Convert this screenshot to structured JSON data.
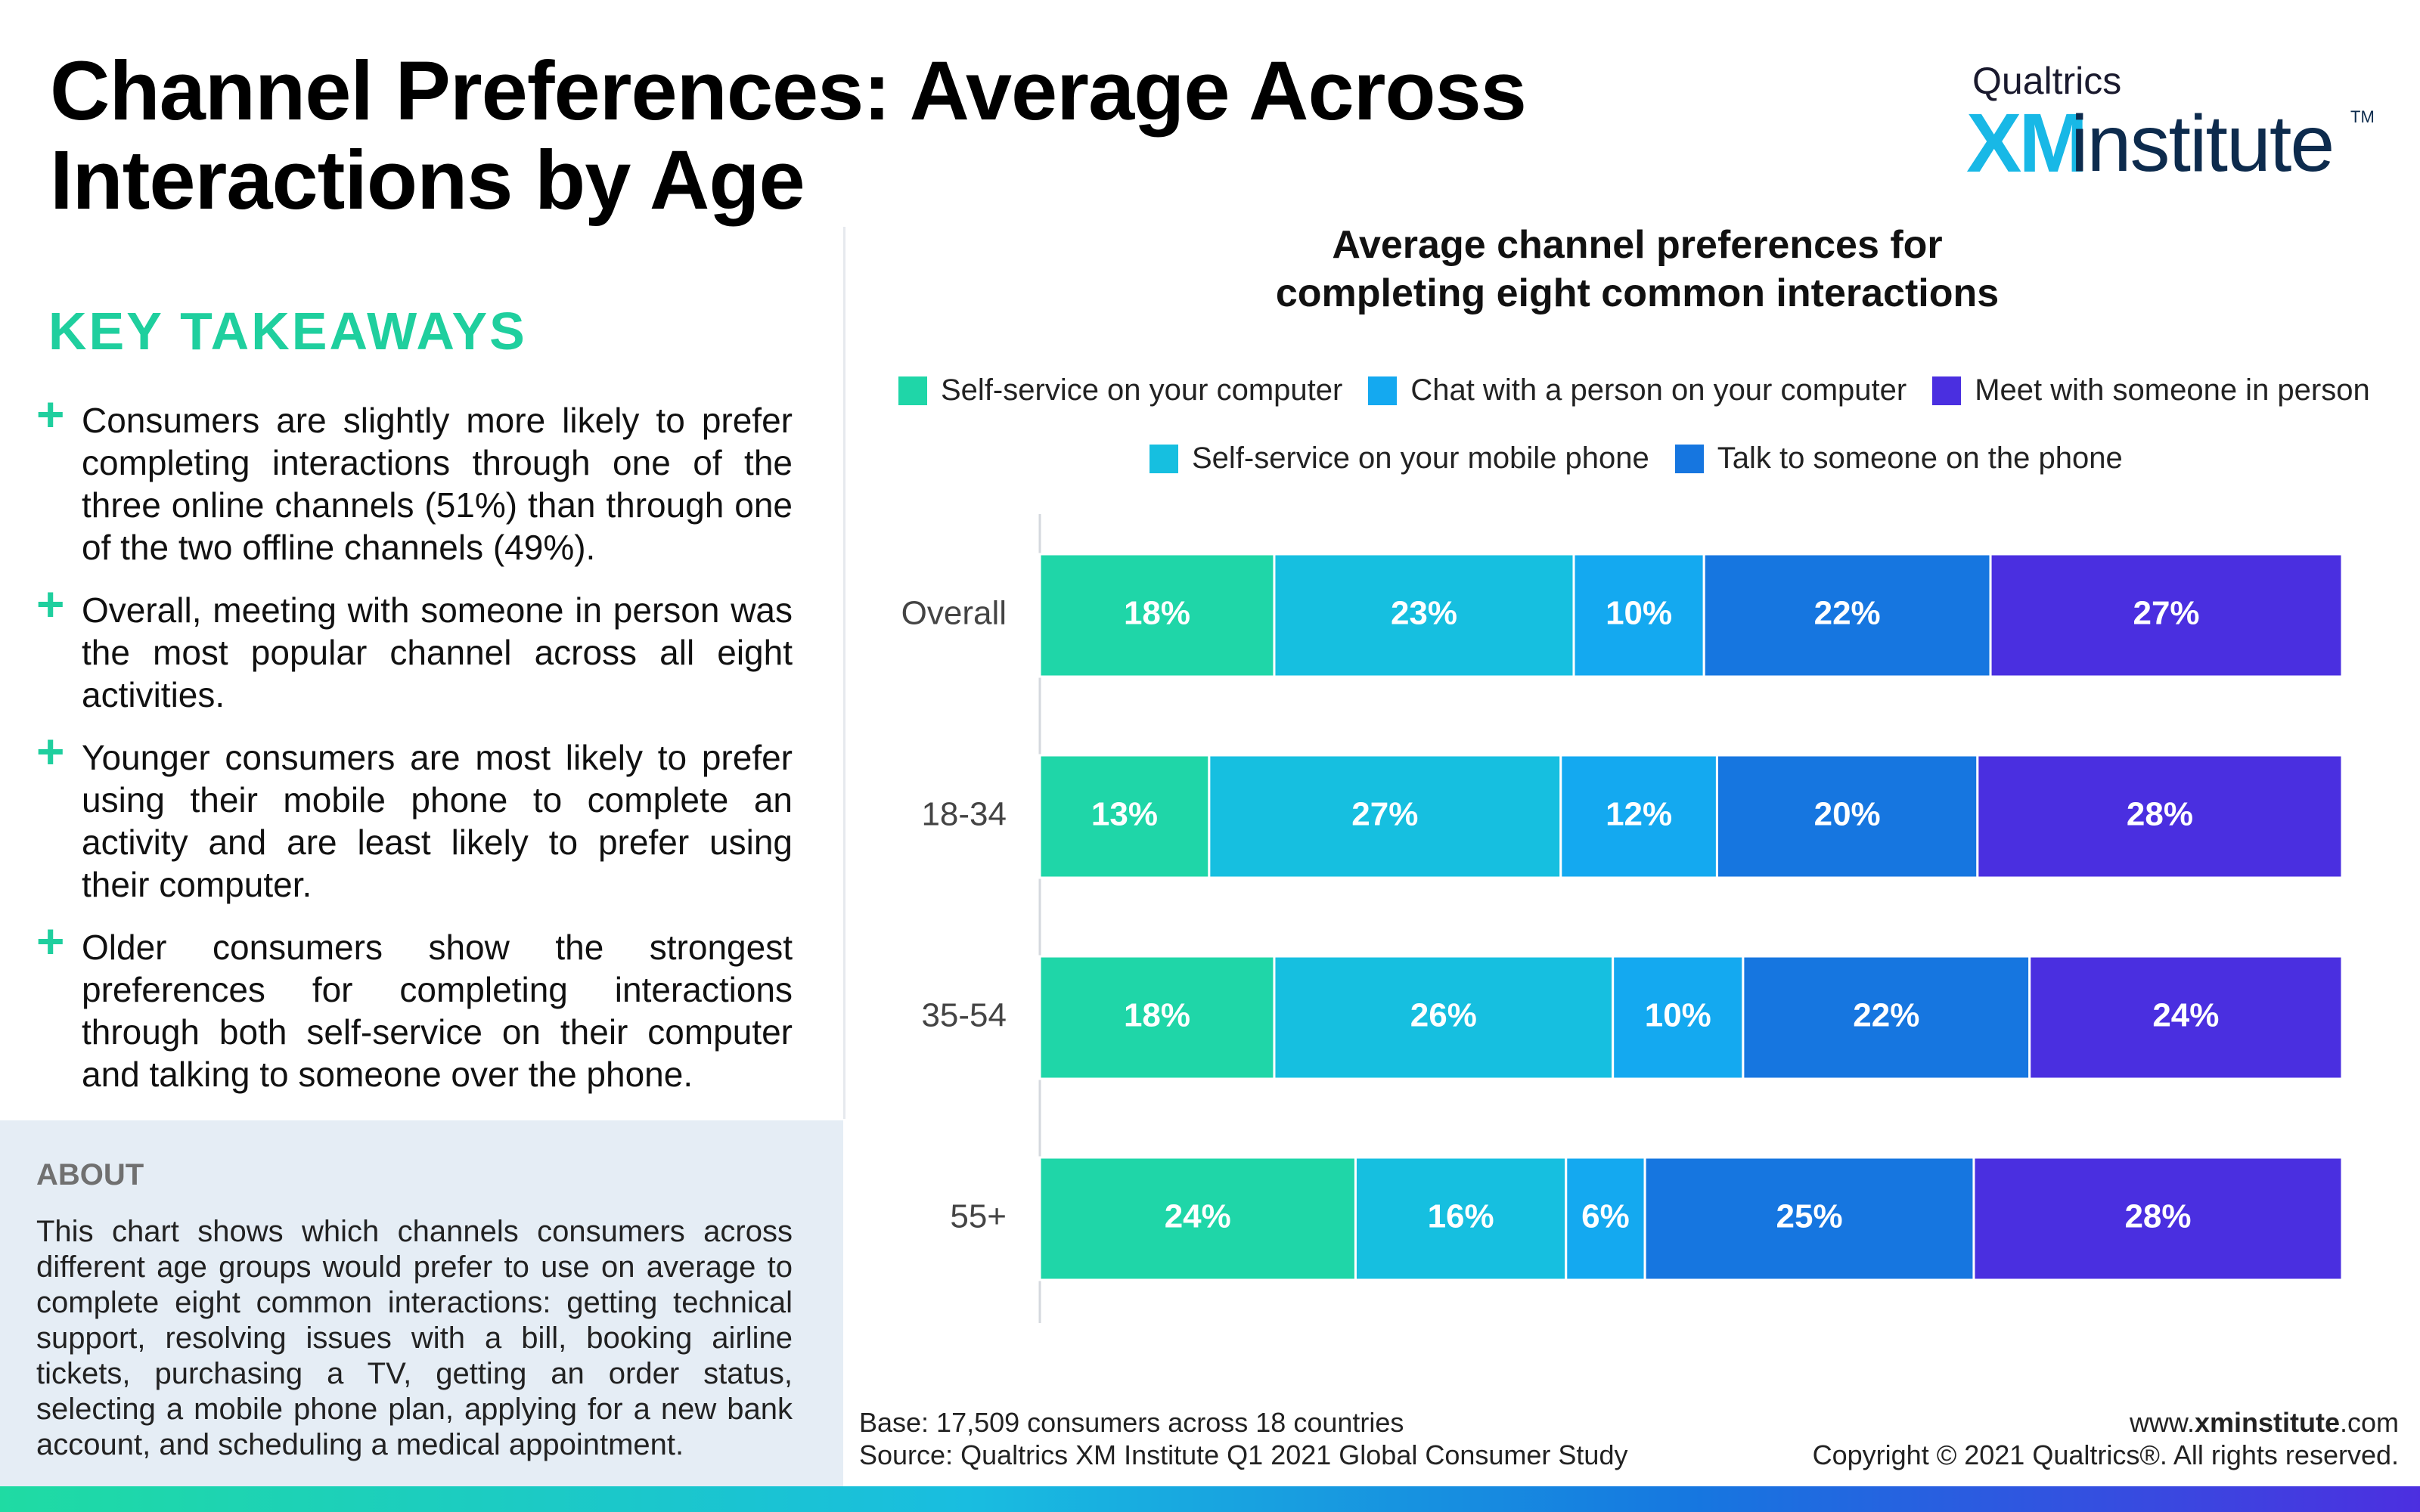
{
  "title_line1": "Channel Preferences: Average Across",
  "title_line2": "Interactions by Age",
  "logo": {
    "top": "Qualtrics",
    "xm": "XM",
    "institute": "institute",
    "tm": "TM"
  },
  "takeaways": {
    "heading": "KEY TAKEAWAYS",
    "items": [
      "Consumers are slightly more likely to prefer completing interactions through one of the three online channels (51%) than through one of the two offline channels (49%).",
      "Overall, meeting with someone in person was the most popular channel across all eight activities.",
      "Younger consumers are most likely to prefer using their mobile phone to complete an activity and are least likely to prefer using their computer.",
      "Older consumers show the strongest preferences for completing interactions through both self-service on their computer and talking to someone over the phone."
    ]
  },
  "about": {
    "heading": "ABOUT",
    "text": "This chart shows which channels consumers across different age groups would prefer to use on average to complete eight common interactions: getting technical support, resolving issues with a bill, booking airline tickets, purchasing a TV, getting an order status, selecting a mobile phone plan, applying for a new bank account, and scheduling a medical appointment."
  },
  "footer": {
    "base": "Base: 17,509 consumers across 18 countries",
    "source": "Source: Qualtrics XM Institute Q1 2021 Global Consumer Study",
    "site_prefix": "www.",
    "site_bold": "xminstitute",
    "site_suffix": ".com",
    "copyright": "Copyright © 2021 Qualtrics®. All rights reserved."
  },
  "chart_data": {
    "type": "bar",
    "orientation": "horizontal",
    "stacked": true,
    "title": "Average channel preferences for completing eight common interactions",
    "title_line1": "Average channel preferences for",
    "title_line2": "completing eight common interactions",
    "categories": [
      "Overall",
      "18-34",
      "35-54",
      "55+"
    ],
    "series": [
      {
        "name": "Self-service on your computer",
        "values": [
          18,
          13,
          18,
          24
        ],
        "color": "#1fd6a8"
      },
      {
        "name": "Self-service on your mobile phone",
        "values": [
          23,
          27,
          26,
          16
        ],
        "color": "#16bfe0"
      },
      {
        "name": "Chat with a person on your computer",
        "values": [
          10,
          12,
          10,
          6
        ],
        "color": "#14a9f0"
      },
      {
        "name": "Talk to someone on the phone",
        "values": [
          22,
          20,
          22,
          25
        ],
        "color": "#1676e0"
      },
      {
        "name": "Meet with someone in person",
        "values": [
          27,
          28,
          24,
          28
        ],
        "color": "#4a2fe0"
      }
    ],
    "legend_rows": [
      [
        "Self-service on your computer",
        "Chat with a person on your computer",
        "Meet with someone in person"
      ],
      [
        "Self-service on your mobile phone",
        "Talk to someone on the phone"
      ]
    ],
    "legend_position": "top",
    "value_suffix": "%",
    "grid": false
  }
}
